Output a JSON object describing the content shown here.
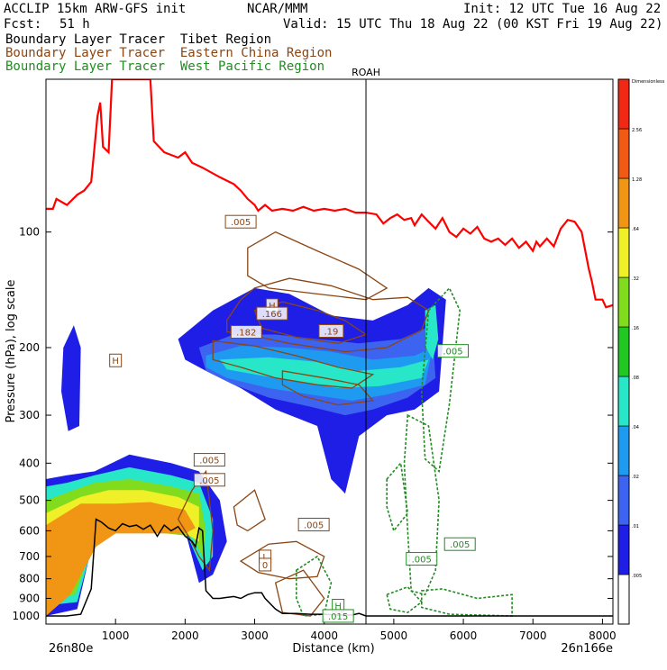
{
  "header": {
    "model": "ACCLIP 15km ARW-GFS init",
    "org": "NCAR/MMM",
    "init": "Init: 12 UTC Tue 16 Aug 22",
    "fcst_label": "Fcst:",
    "fcst_value": "51 h",
    "valid": "Valid: 15 UTC Thu 18 Aug 22 (00 KST Fri 19 Aug 22)"
  },
  "legend_lines": [
    {
      "text": "Boundary Layer Tracer  Tibet Region",
      "color": "#000000"
    },
    {
      "text": "Boundary Layer Tracer  Eastern China Region",
      "color": "#8B4513"
    },
    {
      "text": "Boundary Layer Tracer  West Pacific Region",
      "color": "#228B22"
    }
  ],
  "chart_data": {
    "type": "cross-section contour",
    "xlabel": "Distance (km)",
    "ylabel": "Pressure (hPa), log scale",
    "x_ticks": [
      "1000",
      "2000",
      "3000",
      "4000",
      "5000",
      "6000",
      "7000",
      "8000"
    ],
    "x_tick_values": [
      1000,
      2000,
      3000,
      4000,
      5000,
      6000,
      7000,
      8000
    ],
    "xlim": [
      0,
      8150
    ],
    "y_ticks": [
      "100",
      "200",
      "300",
      "400",
      "500",
      "600",
      "700",
      "800",
      "900",
      "1000"
    ],
    "y_tick_values": [
      100,
      200,
      300,
      400,
      500,
      600,
      700,
      800,
      900,
      1000
    ],
    "ylim": [
      1050,
      40
    ],
    "y_scale": "log",
    "left_endpoint": "26n80e",
    "right_endpoint": "26n166e",
    "station_marker": {
      "label": "ROAH",
      "x": 4600
    },
    "colorbar": {
      "title": "Dimensionless",
      "labels": [
        ".005",
        ".01",
        ".02",
        ".04",
        ".08",
        ".16",
        ".32",
        ".64",
        "1.28",
        "2.56"
      ],
      "colors": [
        "#ffffff",
        "#1e1ee6",
        "#3c64f0",
        "#1e9bf0",
        "#28e6c8",
        "#22c822",
        "#82dc1e",
        "#f0f028",
        "#f09614",
        "#f05a14",
        "#f02814"
      ]
    },
    "tropopause": {
      "color": "#ff0000",
      "points": [
        [
          0,
          87
        ],
        [
          100,
          87
        ],
        [
          150,
          82
        ],
        [
          300,
          85
        ],
        [
          450,
          80
        ],
        [
          550,
          78
        ],
        [
          650,
          74
        ],
        [
          740,
          50
        ],
        [
          780,
          46
        ],
        [
          820,
          60
        ],
        [
          900,
          62
        ],
        [
          950,
          40
        ],
        [
          1500,
          40
        ],
        [
          1550,
          58
        ],
        [
          1700,
          62
        ],
        [
          1900,
          64
        ],
        [
          2000,
          62
        ],
        [
          2100,
          66
        ],
        [
          2250,
          68
        ],
        [
          2500,
          72
        ],
        [
          2700,
          75
        ],
        [
          2800,
          78
        ],
        [
          2900,
          82
        ],
        [
          3000,
          85
        ],
        [
          3050,
          88
        ],
        [
          3150,
          85
        ],
        [
          3250,
          88
        ],
        [
          3400,
          87
        ],
        [
          3550,
          88
        ],
        [
          3700,
          86
        ],
        [
          3850,
          88
        ],
        [
          4000,
          87
        ],
        [
          4150,
          88
        ],
        [
          4300,
          87
        ],
        [
          4450,
          89
        ],
        [
          4600,
          89
        ],
        [
          4750,
          90
        ],
        [
          4850,
          95
        ],
        [
          4950,
          92
        ],
        [
          5050,
          90
        ],
        [
          5150,
          93
        ],
        [
          5250,
          92
        ],
        [
          5300,
          96
        ],
        [
          5400,
          90
        ],
        [
          5500,
          94
        ],
        [
          5600,
          98
        ],
        [
          5700,
          92
        ],
        [
          5800,
          100
        ],
        [
          5900,
          103
        ],
        [
          6000,
          98
        ],
        [
          6100,
          101
        ],
        [
          6200,
          97
        ],
        [
          6300,
          104
        ],
        [
          6400,
          106
        ],
        [
          6500,
          104
        ],
        [
          6600,
          108
        ],
        [
          6700,
          104
        ],
        [
          6800,
          110
        ],
        [
          6900,
          106
        ],
        [
          7000,
          112
        ],
        [
          7050,
          106
        ],
        [
          7100,
          109
        ],
        [
          7200,
          104
        ],
        [
          7300,
          109
        ],
        [
          7400,
          98
        ],
        [
          7500,
          93
        ],
        [
          7600,
          94
        ],
        [
          7700,
          100
        ],
        [
          7800,
          124
        ],
        [
          7850,
          135
        ],
        [
          7900,
          150
        ],
        [
          8000,
          150
        ],
        [
          8050,
          157
        ],
        [
          8150,
          155
        ]
      ]
    },
    "terrain": {
      "color": "#000000",
      "points": [
        [
          0,
          1000
        ],
        [
          300,
          1000
        ],
        [
          500,
          990
        ],
        [
          650,
          850
        ],
        [
          720,
          560
        ],
        [
          800,
          570
        ],
        [
          900,
          590
        ],
        [
          1000,
          600
        ],
        [
          1100,
          575
        ],
        [
          1200,
          585
        ],
        [
          1300,
          580
        ],
        [
          1400,
          595
        ],
        [
          1500,
          580
        ],
        [
          1600,
          620
        ],
        [
          1700,
          580
        ],
        [
          1800,
          600
        ],
        [
          1900,
          585
        ],
        [
          2000,
          620
        ],
        [
          2100,
          640
        ],
        [
          2150,
          660
        ],
        [
          2200,
          590
        ],
        [
          2250,
          600
        ],
        [
          2300,
          860
        ],
        [
          2400,
          900
        ],
        [
          2500,
          900
        ],
        [
          2600,
          895
        ],
        [
          2700,
          890
        ],
        [
          2800,
          900
        ],
        [
          2900,
          880
        ],
        [
          3000,
          870
        ],
        [
          3100,
          870
        ],
        [
          3150,
          900
        ],
        [
          3300,
          960
        ],
        [
          3400,
          985
        ],
        [
          3600,
          985
        ],
        [
          3800,
          990
        ],
        [
          4000,
          990
        ],
        [
          4200,
          995
        ],
        [
          4400,
          995
        ],
        [
          4500,
          985
        ],
        [
          4600,
          1000
        ],
        [
          5000,
          1000
        ],
        [
          8150,
          1000
        ]
      ]
    },
    "contour_labels": [
      {
        "text": ".005",
        "x": 2800,
        "y": 94,
        "series": "eastern-china"
      },
      {
        "text": "H",
        "x": 3250,
        "y": 155,
        "series": "eastern-china"
      },
      {
        "text": ".166",
        "x": 3250,
        "y": 163,
        "series": "eastern-china"
      },
      {
        "text": ".182",
        "x": 2880,
        "y": 182,
        "series": "eastern-china"
      },
      {
        "text": ".19",
        "x": 4100,
        "y": 181,
        "series": "eastern-china"
      },
      {
        "text": ".005",
        "x": 2350,
        "y": 392,
        "series": "eastern-china"
      },
      {
        "text": ".005",
        "x": 2350,
        "y": 442,
        "series": "eastern-china"
      },
      {
        "text": ".005",
        "x": 3850,
        "y": 578,
        "series": "eastern-china"
      },
      {
        "text": "L",
        "x": 3150,
        "y": 700,
        "series": "eastern-china"
      },
      {
        "text": "0",
        "x": 3150,
        "y": 735,
        "series": "eastern-china"
      },
      {
        "text": "H",
        "x": 1000,
        "y": 216,
        "series": "eastern-china"
      },
      {
        "text": ".005",
        "x": 5850,
        "y": 204,
        "series": "west-pacific"
      },
      {
        "text": ".005",
        "x": 5950,
        "y": 650,
        "series": "west-pacific"
      },
      {
        "text": ".005",
        "x": 5400,
        "y": 710,
        "series": "west-pacific"
      },
      {
        "text": "H",
        "x": 4200,
        "y": 940,
        "series": "west-pacific"
      },
      {
        "text": ".015",
        "x": 4200,
        "y": 1000,
        "series": "west-pacific"
      }
    ]
  }
}
